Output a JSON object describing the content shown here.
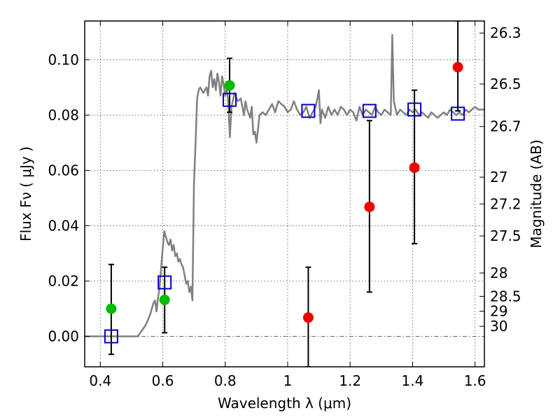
{
  "chart_data": {
    "type": "scatter",
    "xlabel": "Wavelength  λ (μm)",
    "ylabel": "Flux  Fν  ( μJy )",
    "ylabel_right": "Magnitude (AB)",
    "xlim": [
      0.35,
      1.63
    ],
    "ylim": [
      -0.011,
      0.114
    ],
    "grid": true,
    "x_ticks": [
      {
        "value": 0.4,
        "label": "0.4"
      },
      {
        "value": 0.6,
        "label": "0.6"
      },
      {
        "value": 0.8,
        "label": "0.8"
      },
      {
        "value": 1.0,
        "label": "1"
      },
      {
        "value": 1.2,
        "label": "1.2"
      },
      {
        "value": 1.4,
        "label": "1.4"
      },
      {
        "value": 1.6,
        "label": "1.6"
      }
    ],
    "y_ticks": [
      {
        "value": 0.0,
        "label": "0.00"
      },
      {
        "value": 0.02,
        "label": "0.02"
      },
      {
        "value": 0.04,
        "label": "0.04"
      },
      {
        "value": 0.06,
        "label": "0.06"
      },
      {
        "value": 0.08,
        "label": "0.08"
      },
      {
        "value": 0.1,
        "label": "0.10"
      }
    ],
    "mag_ticks": [
      {
        "mag": 26.3,
        "label": "26.3"
      },
      {
        "mag": 26.5,
        "label": "26.5"
      },
      {
        "mag": 26.7,
        "label": "26.7"
      },
      {
        "mag": 27,
        "label": "27"
      },
      {
        "mag": 27.2,
        "label": "27.2"
      },
      {
        "mag": 27.5,
        "label": "27.5"
      },
      {
        "mag": 28,
        "label": "28"
      },
      {
        "mag": 28.5,
        "label": "28.5"
      },
      {
        "mag": 29,
        "label": "29"
      },
      {
        "mag": 30,
        "label": "30"
      }
    ],
    "colors": {
      "model": "#808080",
      "model_boxes": "#0000cc",
      "detections": "#00bb00",
      "nondetections": "#ee0000",
      "errorbars": "#000000",
      "zero_line": "#666666"
    },
    "model_spectrum": [
      [
        0.35,
        0.0
      ],
      [
        0.52,
        0.0
      ],
      [
        0.545,
        0.004
      ],
      [
        0.56,
        0.008
      ],
      [
        0.57,
        0.012
      ],
      [
        0.575,
        0.013
      ],
      [
        0.58,
        0.009
      ],
      [
        0.585,
        0.014
      ],
      [
        0.59,
        0.018
      ],
      [
        0.595,
        0.025
      ],
      [
        0.6,
        0.032
      ],
      [
        0.605,
        0.038
      ],
      [
        0.61,
        0.036
      ],
      [
        0.615,
        0.034
      ],
      [
        0.62,
        0.033
      ],
      [
        0.625,
        0.035
      ],
      [
        0.63,
        0.031
      ],
      [
        0.635,
        0.033
      ],
      [
        0.64,
        0.029
      ],
      [
        0.645,
        0.03
      ],
      [
        0.65,
        0.027
      ],
      [
        0.655,
        0.028
      ],
      [
        0.66,
        0.026
      ],
      [
        0.665,
        0.025
      ],
      [
        0.67,
        0.022
      ],
      [
        0.675,
        0.019
      ],
      [
        0.68,
        0.02
      ],
      [
        0.685,
        0.016
      ],
      [
        0.69,
        0.018
      ],
      [
        0.695,
        0.013
      ],
      [
        0.7,
        0.055
      ],
      [
        0.705,
        0.07
      ],
      [
        0.71,
        0.086
      ],
      [
        0.715,
        0.089
      ],
      [
        0.72,
        0.09
      ],
      [
        0.73,
        0.088
      ],
      [
        0.74,
        0.09
      ],
      [
        0.745,
        0.087
      ],
      [
        0.75,
        0.094
      ],
      [
        0.755,
        0.096
      ],
      [
        0.76,
        0.09
      ],
      [
        0.765,
        0.093
      ],
      [
        0.77,
        0.089
      ],
      [
        0.775,
        0.095
      ],
      [
        0.78,
        0.092
      ],
      [
        0.785,
        0.087
      ],
      [
        0.79,
        0.094
      ],
      [
        0.795,
        0.091
      ],
      [
        0.8,
        0.087
      ],
      [
        0.805,
        0.09
      ],
      [
        0.81,
        0.084
      ],
      [
        0.815,
        0.072
      ],
      [
        0.82,
        0.083
      ],
      [
        0.83,
        0.088
      ],
      [
        0.84,
        0.085
      ],
      [
        0.85,
        0.086
      ],
      [
        0.86,
        0.08
      ],
      [
        0.865,
        0.085
      ],
      [
        0.87,
        0.082
      ],
      [
        0.88,
        0.079
      ],
      [
        0.885,
        0.083
      ],
      [
        0.89,
        0.073
      ],
      [
        0.895,
        0.074
      ],
      [
        0.9,
        0.07
      ],
      [
        0.91,
        0.08
      ],
      [
        0.92,
        0.081
      ],
      [
        0.93,
        0.08
      ],
      [
        0.94,
        0.082
      ],
      [
        0.95,
        0.084
      ],
      [
        0.96,
        0.081
      ],
      [
        0.97,
        0.085
      ],
      [
        0.98,
        0.084
      ],
      [
        0.99,
        0.083
      ],
      [
        1.0,
        0.081
      ],
      [
        1.01,
        0.082
      ],
      [
        1.02,
        0.085
      ],
      [
        1.03,
        0.082
      ],
      [
        1.04,
        0.08
      ],
      [
        1.05,
        0.081
      ],
      [
        1.06,
        0.083
      ],
      [
        1.07,
        0.079
      ],
      [
        1.08,
        0.081
      ],
      [
        1.09,
        0.083
      ],
      [
        1.1,
        0.089
      ],
      [
        1.105,
        0.077
      ],
      [
        1.11,
        0.082
      ],
      [
        1.12,
        0.079
      ],
      [
        1.13,
        0.083
      ],
      [
        1.14,
        0.08
      ],
      [
        1.15,
        0.082
      ],
      [
        1.16,
        0.08
      ],
      [
        1.17,
        0.083
      ],
      [
        1.18,
        0.082
      ],
      [
        1.19,
        0.08
      ],
      [
        1.2,
        0.082
      ],
      [
        1.21,
        0.081
      ],
      [
        1.22,
        0.078
      ],
      [
        1.23,
        0.083
      ],
      [
        1.24,
        0.08
      ],
      [
        1.25,
        0.082
      ],
      [
        1.26,
        0.081
      ],
      [
        1.27,
        0.08
      ],
      [
        1.28,
        0.083
      ],
      [
        1.29,
        0.081
      ],
      [
        1.3,
        0.08
      ],
      [
        1.31,
        0.082
      ],
      [
        1.32,
        0.081
      ],
      [
        1.33,
        0.08
      ],
      [
        1.335,
        0.109
      ],
      [
        1.34,
        0.085
      ],
      [
        1.35,
        0.08
      ],
      [
        1.36,
        0.082
      ],
      [
        1.37,
        0.081
      ],
      [
        1.38,
        0.08
      ],
      [
        1.39,
        0.082
      ],
      [
        1.4,
        0.081
      ],
      [
        1.41,
        0.082
      ],
      [
        1.42,
        0.08
      ],
      [
        1.43,
        0.081
      ],
      [
        1.44,
        0.08
      ],
      [
        1.45,
        0.079
      ],
      [
        1.46,
        0.081
      ],
      [
        1.47,
        0.08
      ],
      [
        1.48,
        0.079
      ],
      [
        1.49,
        0.08
      ],
      [
        1.5,
        0.081
      ],
      [
        1.51,
        0.08
      ],
      [
        1.52,
        0.082
      ],
      [
        1.53,
        0.081
      ],
      [
        1.54,
        0.08
      ],
      [
        1.55,
        0.081
      ],
      [
        1.56,
        0.08
      ],
      [
        1.57,
        0.082
      ],
      [
        1.58,
        0.081
      ],
      [
        1.59,
        0.082
      ],
      [
        1.6,
        0.083
      ],
      [
        1.61,
        0.082
      ],
      [
        1.63,
        0.082
      ]
    ],
    "model_boxes": [
      {
        "x": 0.435,
        "y": 0.0
      },
      {
        "x": 0.606,
        "y": 0.0195
      },
      {
        "x": 0.814,
        "y": 0.0855
      },
      {
        "x": 1.066,
        "y": 0.0815
      },
      {
        "x": 1.262,
        "y": 0.0815
      },
      {
        "x": 1.406,
        "y": 0.082
      },
      {
        "x": 1.545,
        "y": 0.0805
      }
    ],
    "detections": [
      {
        "x": 0.435,
        "y": 0.01,
        "yerr_low": -0.0065,
        "yerr_high": 0.026
      },
      {
        "x": 0.606,
        "y": 0.0132,
        "yerr_low": 0.0013,
        "yerr_high": 0.025
      },
      {
        "x": 0.814,
        "y": 0.0907,
        "yerr_low": 0.081,
        "yerr_high": 0.1005
      }
    ],
    "nondetections": [
      {
        "x": 1.066,
        "y": 0.0068,
        "yerr_low": -0.011,
        "yerr_high": 0.025
      },
      {
        "x": 1.262,
        "y": 0.0468,
        "yerr_low": 0.016,
        "yerr_high": 0.078
      },
      {
        "x": 1.406,
        "y": 0.061,
        "yerr_low": 0.0335,
        "yerr_high": 0.089
      },
      {
        "x": 1.545,
        "y": 0.0973,
        "yerr_low": 0.0815,
        "yerr_high": 0.114
      }
    ]
  }
}
